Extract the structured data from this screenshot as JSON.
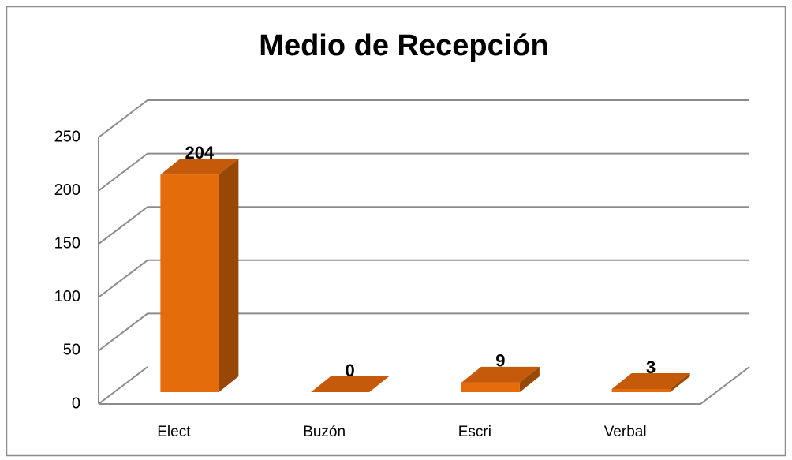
{
  "chart_data": {
    "type": "bar3d",
    "title": "Medio de Recepción",
    "categories": [
      "Elect",
      "Buzón",
      "Escri",
      "Verbal"
    ],
    "values": [
      204,
      0,
      9,
      3
    ],
    "color": "#e46c0a",
    "ylim": [
      0,
      250
    ],
    "yticks": [
      0,
      50,
      100,
      150,
      200,
      250
    ],
    "grid": true
  }
}
